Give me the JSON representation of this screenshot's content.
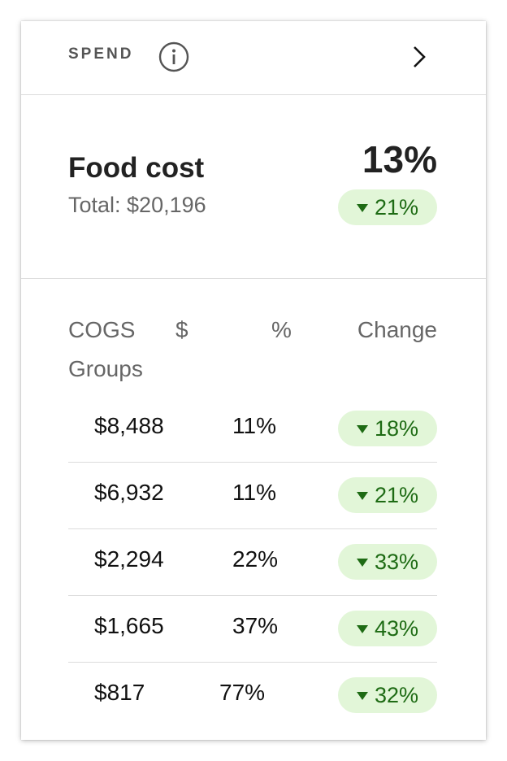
{
  "header": {
    "title": "SPEND",
    "info_icon": "info-circle-icon",
    "chevron_icon": "chevron-right-icon"
  },
  "summary": {
    "title": "Food cost",
    "total": "Total: $20,196",
    "percent": "13%",
    "change": "21%",
    "change_direction": "down"
  },
  "table": {
    "headers": [
      "COGS Groups",
      "$",
      "%",
      "Change"
    ],
    "rows": [
      {
        "dollar": "$8,488",
        "percent": "11%",
        "change": "18%"
      },
      {
        "dollar": "$6,932",
        "percent": "11%",
        "change": "21%"
      },
      {
        "dollar": "$2,294",
        "percent": "22%",
        "change": "33%"
      },
      {
        "dollar": "$1,665",
        "percent": "37%",
        "change": "43%"
      },
      {
        "dollar": "$817",
        "percent": "77%",
        "change": "32%"
      }
    ]
  },
  "colors": {
    "pill_background": "#e2f6d8",
    "pill_text": "#1e6b14",
    "divider": "#dcdcdc",
    "muted_text": "#666666"
  }
}
